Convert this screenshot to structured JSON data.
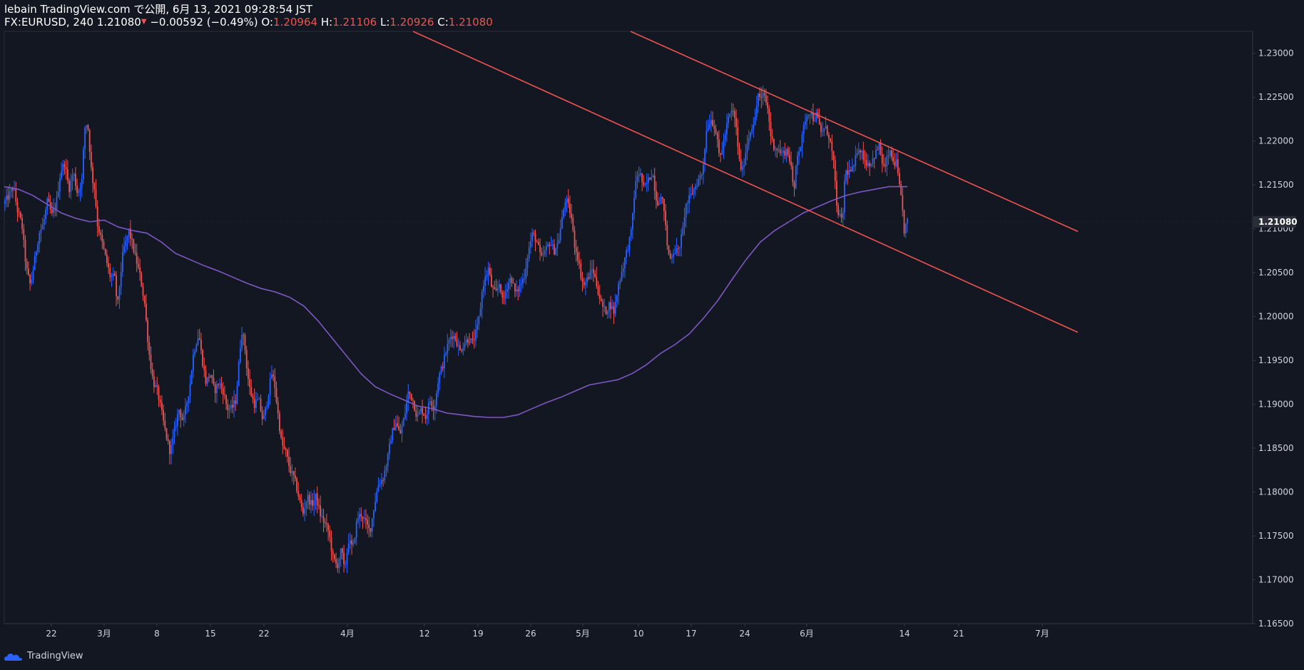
{
  "header": {
    "line1": "lebain TradingView.com で公開, 6月 13, 2021 09:28:54 JST",
    "symbol_part": "FX:EURUSD, 240 1.21080",
    "arrow_glyph": "▼",
    "change": "−0.00592 (−0.49%)",
    "o_label": "O:",
    "o_value": "1.20964",
    "h_label": "H:",
    "h_value": "1.21106",
    "l_label": "L:",
    "l_value": "1.20926",
    "c_label": "C:",
    "c_value": "1.21080"
  },
  "footer": {
    "brand": "TradingView"
  },
  "colors": {
    "background": "#131722",
    "up": "#2962ff",
    "down": "#ef5350",
    "ma": "#7e57c2",
    "trendline": "#ef5350",
    "axis_text": "#d1d4dc",
    "last_price_bg": "#2a2e39"
  },
  "chart_data": {
    "type": "candlestick",
    "title": "FX:EURUSD, 240",
    "symbol": "FX:EURUSD",
    "timeframe": "240",
    "last_price": "1.21080",
    "ylim": [
      1.165,
      1.2325
    ],
    "y_ticks": [
      "1.23000",
      "1.22500",
      "1.22000",
      "1.21500",
      "1.21000",
      "1.20500",
      "1.20000",
      "1.19500",
      "1.19000",
      "1.18500",
      "1.18000",
      "1.17500",
      "1.17000",
      "1.16500"
    ],
    "x_ticks": [
      {
        "label": "22",
        "t": 66
      },
      {
        "label": "3月",
        "t": 140
      },
      {
        "label": "8",
        "t": 214
      },
      {
        "label": "15",
        "t": 289
      },
      {
        "label": "22",
        "t": 364
      },
      {
        "label": "4月",
        "t": 481
      },
      {
        "label": "12",
        "t": 589
      },
      {
        "label": "19",
        "t": 664
      },
      {
        "label": "26",
        "t": 738
      },
      {
        "label": "5月",
        "t": 811
      },
      {
        "label": "10",
        "t": 889
      },
      {
        "label": "17",
        "t": 963
      },
      {
        "label": "24",
        "t": 1038
      },
      {
        "label": "6月",
        "t": 1125
      },
      {
        "label": "14",
        "t": 1262
      },
      {
        "label": "21",
        "t": 1338
      },
      {
        "label": "7月",
        "t": 1455
      }
    ],
    "price_path": [
      [
        0,
        1.2128
      ],
      [
        8,
        1.2138
      ],
      [
        14,
        1.2148
      ],
      [
        20,
        1.212
      ],
      [
        26,
        1.2105
      ],
      [
        32,
        1.2055
      ],
      [
        38,
        1.2035
      ],
      [
        44,
        1.2065
      ],
      [
        50,
        1.2095
      ],
      [
        56,
        1.2105
      ],
      [
        62,
        1.2132
      ],
      [
        68,
        1.2115
      ],
      [
        74,
        1.2128
      ],
      [
        80,
        1.2165
      ],
      [
        86,
        1.2175
      ],
      [
        92,
        1.2145
      ],
      [
        98,
        1.2165
      ],
      [
        104,
        1.214
      ],
      [
        110,
        1.2155
      ],
      [
        114,
        1.2215
      ],
      [
        118,
        1.2222
      ],
      [
        124,
        1.216
      ],
      [
        128,
        1.2145
      ],
      [
        132,
        1.2105
      ],
      [
        138,
        1.2085
      ],
      [
        144,
        1.2065
      ],
      [
        150,
        1.2045
      ],
      [
        156,
        1.2045
      ],
      [
        160,
        1.201
      ],
      [
        164,
        1.2045
      ],
      [
        168,
        1.2075
      ],
      [
        172,
        1.2085
      ],
      [
        176,
        1.2098
      ],
      [
        180,
        1.2085
      ],
      [
        186,
        1.2065
      ],
      [
        192,
        1.2045
      ],
      [
        198,
        1.2015
      ],
      [
        204,
        1.196
      ],
      [
        210,
        1.1925
      ],
      [
        216,
        1.1915
      ],
      [
        222,
        1.189
      ],
      [
        228,
        1.1865
      ],
      [
        234,
        1.1845
      ],
      [
        240,
        1.187
      ],
      [
        246,
        1.1895
      ],
      [
        252,
        1.188
      ],
      [
        258,
        1.1905
      ],
      [
        262,
        1.1925
      ],
      [
        266,
        1.1955
      ],
      [
        270,
        1.197
      ],
      [
        274,
        1.198
      ],
      [
        278,
        1.1955
      ],
      [
        284,
        1.1925
      ],
      [
        290,
        1.1935
      ],
      [
        296,
        1.1915
      ],
      [
        302,
        1.1925
      ],
      [
        308,
        1.1915
      ],
      [
        314,
        1.1895
      ],
      [
        320,
        1.1895
      ],
      [
        326,
        1.1905
      ],
      [
        330,
        1.1945
      ],
      [
        334,
        1.1985
      ],
      [
        338,
        1.197
      ],
      [
        342,
        1.1935
      ],
      [
        346,
        1.1915
      ],
      [
        352,
        1.19
      ],
      [
        358,
        1.1905
      ],
      [
        364,
        1.188
      ],
      [
        370,
        1.1905
      ],
      [
        376,
        1.1935
      ],
      [
        380,
        1.1925
      ],
      [
        384,
        1.1895
      ],
      [
        390,
        1.1855
      ],
      [
        396,
        1.1845
      ],
      [
        402,
        1.1825
      ],
      [
        408,
        1.1815
      ],
      [
        414,
        1.1795
      ],
      [
        420,
        1.1775
      ],
      [
        426,
        1.1795
      ],
      [
        432,
        1.1785
      ],
      [
        438,
        1.1795
      ],
      [
        444,
        1.1775
      ],
      [
        450,
        1.1765
      ],
      [
        456,
        1.1755
      ],
      [
        462,
        1.1725
      ],
      [
        468,
        1.1715
      ],
      [
        474,
        1.1735
      ],
      [
        478,
        1.171
      ],
      [
        484,
        1.1745
      ],
      [
        490,
        1.1735
      ],
      [
        496,
        1.177
      ],
      [
        502,
        1.1775
      ],
      [
        508,
        1.1765
      ],
      [
        514,
        1.1755
      ],
      [
        520,
        1.1785
      ],
      [
        526,
        1.181
      ],
      [
        532,
        1.1815
      ],
      [
        538,
        1.1835
      ],
      [
        544,
        1.1865
      ],
      [
        550,
        1.188
      ],
      [
        556,
        1.1865
      ],
      [
        562,
        1.1885
      ],
      [
        568,
        1.1915
      ],
      [
        574,
        1.1905
      ],
      [
        580,
        1.1885
      ],
      [
        586,
        1.1895
      ],
      [
        592,
        1.1885
      ],
      [
        598,
        1.1905
      ],
      [
        604,
        1.1895
      ],
      [
        610,
        1.193
      ],
      [
        616,
        1.1945
      ],
      [
        622,
        1.1965
      ],
      [
        628,
        1.198
      ],
      [
        634,
        1.1975
      ],
      [
        640,
        1.196
      ],
      [
        646,
        1.197
      ],
      [
        652,
        1.1975
      ],
      [
        658,
        1.197
      ],
      [
        664,
        1.1985
      ],
      [
        668,
        1.2005
      ],
      [
        672,
        1.2035
      ],
      [
        676,
        1.2045
      ],
      [
        680,
        1.2055
      ],
      [
        684,
        1.2035
      ],
      [
        690,
        1.2025
      ],
      [
        696,
        1.204
      ],
      [
        700,
        1.2015
      ],
      [
        706,
        1.2035
      ],
      [
        712,
        1.2045
      ],
      [
        718,
        1.2025
      ],
      [
        724,
        1.2035
      ],
      [
        730,
        1.2045
      ],
      [
        736,
        1.2075
      ],
      [
        742,
        1.2095
      ],
      [
        748,
        1.2085
      ],
      [
        754,
        1.2065
      ],
      [
        760,
        1.2075
      ],
      [
        766,
        1.2085
      ],
      [
        772,
        1.2075
      ],
      [
        778,
        1.2085
      ],
      [
        784,
        1.2115
      ],
      [
        788,
        1.2135
      ],
      [
        792,
        1.2125
      ],
      [
        796,
        1.2115
      ],
      [
        800,
        1.2085
      ],
      [
        806,
        1.2065
      ],
      [
        810,
        1.2045
      ],
      [
        814,
        1.2035
      ],
      [
        820,
        1.2045
      ],
      [
        826,
        1.2055
      ],
      [
        832,
        1.2035
      ],
      [
        838,
        1.2015
      ],
      [
        844,
        1.2005
      ],
      [
        850,
        1.2015
      ],
      [
        856,
        1.2005
      ],
      [
        862,
        1.2035
      ],
      [
        868,
        1.2055
      ],
      [
        874,
        1.2075
      ],
      [
        880,
        1.2095
      ],
      [
        884,
        1.2135
      ],
      [
        888,
        1.216
      ],
      [
        892,
        1.2165
      ],
      [
        898,
        1.2145
      ],
      [
        904,
        1.2155
      ],
      [
        910,
        1.2165
      ],
      [
        916,
        1.213
      ],
      [
        922,
        1.2135
      ],
      [
        926,
        1.2125
      ],
      [
        930,
        1.2085
      ],
      [
        934,
        1.2065
      ],
      [
        940,
        1.2075
      ],
      [
        946,
        1.2075
      ],
      [
        952,
        1.2095
      ],
      [
        956,
        1.2125
      ],
      [
        962,
        1.2135
      ],
      [
        968,
        1.2145
      ],
      [
        974,
        1.2155
      ],
      [
        980,
        1.2165
      ],
      [
        986,
        1.2215
      ],
      [
        992,
        1.2225
      ],
      [
        998,
        1.2215
      ],
      [
        1004,
        1.218
      ],
      [
        1010,
        1.22
      ],
      [
        1016,
        1.2225
      ],
      [
        1022,
        1.2235
      ],
      [
        1026,
        1.2225
      ],
      [
        1032,
        1.2175
      ],
      [
        1036,
        1.2165
      ],
      [
        1042,
        1.2195
      ],
      [
        1048,
        1.2215
      ],
      [
        1054,
        1.2225
      ],
      [
        1058,
        1.2255
      ],
      [
        1062,
        1.2245
      ],
      [
        1066,
        1.2255
      ],
      [
        1072,
        1.2235
      ],
      [
        1076,
        1.2205
      ],
      [
        1080,
        1.2195
      ],
      [
        1086,
        1.219
      ],
      [
        1092,
        1.2185
      ],
      [
        1098,
        1.219
      ],
      [
        1104,
        1.2175
      ],
      [
        1108,
        1.2135
      ],
      [
        1112,
        1.2185
      ],
      [
        1118,
        1.2195
      ],
      [
        1124,
        1.2225
      ],
      [
        1130,
        1.2235
      ],
      [
        1136,
        1.2225
      ],
      [
        1140,
        1.223
      ],
      [
        1146,
        1.221
      ],
      [
        1152,
        1.2215
      ],
      [
        1158,
        1.2205
      ],
      [
        1164,
        1.2175
      ],
      [
        1168,
        1.2125
      ],
      [
        1172,
        1.2115
      ],
      [
        1176,
        1.2105
      ],
      [
        1180,
        1.2165
      ],
      [
        1186,
        1.2165
      ],
      [
        1192,
        1.2168
      ],
      [
        1198,
        1.2195
      ],
      [
        1204,
        1.2185
      ],
      [
        1210,
        1.2175
      ],
      [
        1216,
        1.2175
      ],
      [
        1222,
        1.2185
      ],
      [
        1228,
        1.2195
      ],
      [
        1232,
        1.2175
      ],
      [
        1236,
        1.2168
      ],
      [
        1240,
        1.2185
      ],
      [
        1244,
        1.2185
      ],
      [
        1248,
        1.2175
      ],
      [
        1252,
        1.2175
      ],
      [
        1256,
        1.2148
      ],
      [
        1260,
        1.2125
      ],
      [
        1263,
        1.2096
      ],
      [
        1266,
        1.2108
      ]
    ],
    "moving_average": {
      "name": "MA",
      "points": [
        [
          0,
          1.2148
        ],
        [
          20,
          1.2145
        ],
        [
          40,
          1.2138
        ],
        [
          60,
          1.2128
        ],
        [
          80,
          1.2118
        ],
        [
          100,
          1.2112
        ],
        [
          120,
          1.2108
        ],
        [
          140,
          1.211
        ],
        [
          160,
          1.2102
        ],
        [
          180,
          1.2098
        ],
        [
          200,
          1.2095
        ],
        [
          220,
          1.2085
        ],
        [
          240,
          1.2072
        ],
        [
          260,
          1.2065
        ],
        [
          280,
          1.2058
        ],
        [
          300,
          1.2052
        ],
        [
          320,
          1.2045
        ],
        [
          340,
          1.2038
        ],
        [
          360,
          1.2032
        ],
        [
          380,
          1.2028
        ],
        [
          400,
          1.2022
        ],
        [
          420,
          1.2012
        ],
        [
          440,
          1.1995
        ],
        [
          460,
          1.1975
        ],
        [
          480,
          1.1955
        ],
        [
          500,
          1.1935
        ],
        [
          520,
          1.192
        ],
        [
          540,
          1.1912
        ],
        [
          560,
          1.1905
        ],
        [
          580,
          1.1898
        ],
        [
          600,
          1.1895
        ],
        [
          620,
          1.189
        ],
        [
          640,
          1.1888
        ],
        [
          660,
          1.1886
        ],
        [
          680,
          1.1885
        ],
        [
          700,
          1.1885
        ],
        [
          720,
          1.1888
        ],
        [
          740,
          1.1895
        ],
        [
          760,
          1.1902
        ],
        [
          780,
          1.1908
        ],
        [
          800,
          1.1915
        ],
        [
          820,
          1.1922
        ],
        [
          840,
          1.1925
        ],
        [
          860,
          1.1928
        ],
        [
          880,
          1.1935
        ],
        [
          900,
          1.1945
        ],
        [
          920,
          1.1958
        ],
        [
          940,
          1.1968
        ],
        [
          960,
          1.198
        ],
        [
          980,
          1.1998
        ],
        [
          1000,
          1.2018
        ],
        [
          1020,
          1.2042
        ],
        [
          1040,
          1.2065
        ],
        [
          1060,
          1.2085
        ],
        [
          1080,
          1.2098
        ],
        [
          1100,
          1.2108
        ],
        [
          1120,
          1.2118
        ],
        [
          1140,
          1.2125
        ],
        [
          1160,
          1.2132
        ],
        [
          1180,
          1.2138
        ],
        [
          1200,
          1.2142
        ],
        [
          1220,
          1.2145
        ],
        [
          1240,
          1.2148
        ],
        [
          1260,
          1.2148
        ],
        [
          1266,
          1.2148
        ]
      ]
    },
    "trendlines": [
      {
        "name": "upper-trendline",
        "t1": 878,
        "p1": 1.2325,
        "t2": 1505,
        "p2": 1.2097
      },
      {
        "name": "lower-trendline",
        "t1": 573,
        "p1": 1.2325,
        "t2": 1505,
        "p2": 1.1982
      }
    ]
  }
}
